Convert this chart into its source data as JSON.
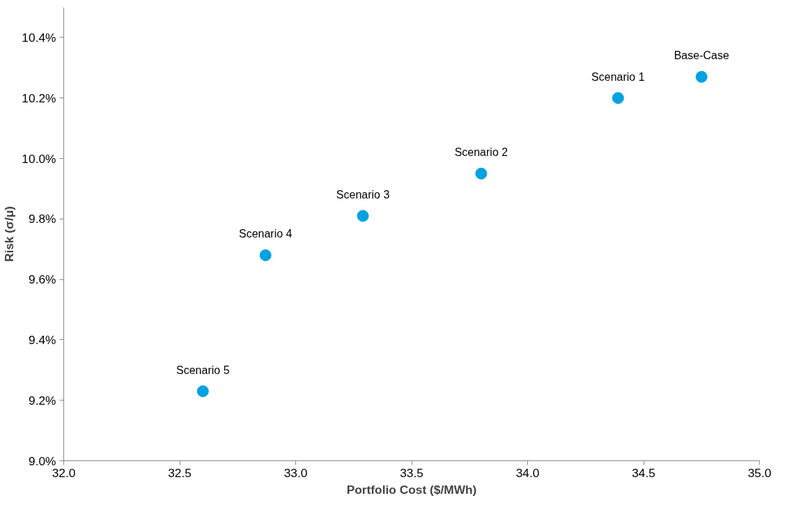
{
  "chart_data": {
    "type": "scatter",
    "xlabel": "Portfolio Cost ($/MWh)",
    "ylabel": "Risk (σ/μ)",
    "x": [
      34.75,
      34.39,
      33.8,
      33.29,
      32.87,
      32.6
    ],
    "series": [
      {
        "color": "#00a2e1",
        "values": [
          10.27,
          10.2,
          9.95,
          9.81,
          9.68,
          9.23
        ]
      }
    ],
    "annotations": [
      {
        "text": "Base-Case",
        "x": 34.75,
        "y": 10.27
      },
      {
        "text": "Scenario 1",
        "x": 34.39,
        "y": 10.2
      },
      {
        "text": "Scenario 2",
        "x": 33.8,
        "y": 9.95
      },
      {
        "text": "Scenario 3",
        "x": 33.29,
        "y": 9.81
      },
      {
        "text": "Scenario 4",
        "x": 32.87,
        "y": 9.68
      },
      {
        "text": "Scenario 5",
        "x": 32.6,
        "y": 9.23
      }
    ],
    "xlim": [
      32.0,
      35.0
    ],
    "ylim": [
      9.0,
      10.5
    ],
    "xticks": [
      {
        "value": 32,
        "label": "32.0"
      },
      {
        "value": 32.5,
        "label": "32.5"
      },
      {
        "value": 33,
        "label": "33.0"
      },
      {
        "value": 33.5,
        "label": "33.5"
      },
      {
        "value": 34,
        "label": "34.0"
      },
      {
        "value": 34.5,
        "label": "34.5"
      },
      {
        "value": 35,
        "label": "35.0"
      }
    ],
    "yticks": [
      {
        "value": 9,
        "label": "9.0%"
      },
      {
        "value": 9.2,
        "label": "9.2%"
      },
      {
        "value": 9.4,
        "label": "9.4%"
      },
      {
        "value": 9.6,
        "label": "9.6%"
      },
      {
        "value": 9.8,
        "label": "9.8%"
      },
      {
        "value": 10,
        "label": "10.0%"
      },
      {
        "value": 10.2,
        "label": "10.2%"
      },
      {
        "value": 10.4,
        "label": "10.4%"
      }
    ],
    "marker": "circle",
    "grid": false
  }
}
